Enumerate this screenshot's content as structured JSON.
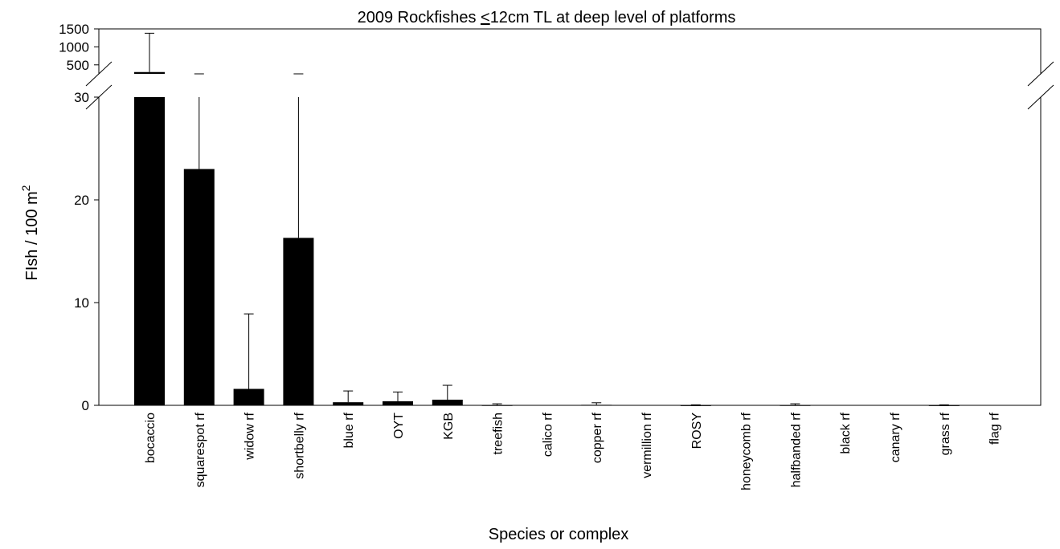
{
  "chart_data": {
    "type": "bar",
    "title_pre": "2009 Rockfishes ",
    "title_sym": "<",
    "title_post": "12cm TL at deep level of platforms",
    "xlabel": "Species or complex",
    "ylabel_main": "FIsh / 100 m",
    "ylabel_sup": "2",
    "categories": [
      "bocaccio",
      "squarespot rf",
      "widow rf",
      "shortbelly rf",
      "blue rf",
      "OYT",
      "KGB",
      "treefish",
      "calico rf",
      "copper rf",
      "vermillion rf",
      "ROSY",
      "honeycomb rf",
      "halfbanded rf",
      "black rf",
      "canary rf",
      "grass rf",
      "flag rf"
    ],
    "values": [
      300,
      23,
      1.6,
      16.3,
      0.3,
      0.4,
      0.55,
      0.02,
      0.0,
      0.05,
      0.0,
      0.01,
      0.0,
      0.02,
      0.0,
      0.0,
      0.01,
      0.0
    ],
    "errors_upper": [
      1380,
      150,
      8.9,
      140,
      1.4,
      1.3,
      1.95,
      0.15,
      0.0,
      0.25,
      0.0,
      0.05,
      0.0,
      0.15,
      0.0,
      0.0,
      0.05,
      0.0
    ],
    "lower_axis": {
      "ylim": [
        0,
        30
      ],
      "ticks": [
        "0",
        "10",
        "20",
        "30"
      ]
    },
    "upper_axis": {
      "ylim": [
        0,
        1500
      ],
      "ticks": [
        "500",
        "1000",
        "1500"
      ]
    },
    "axis_break": true,
    "grid": false,
    "bar_color": "#000000"
  }
}
